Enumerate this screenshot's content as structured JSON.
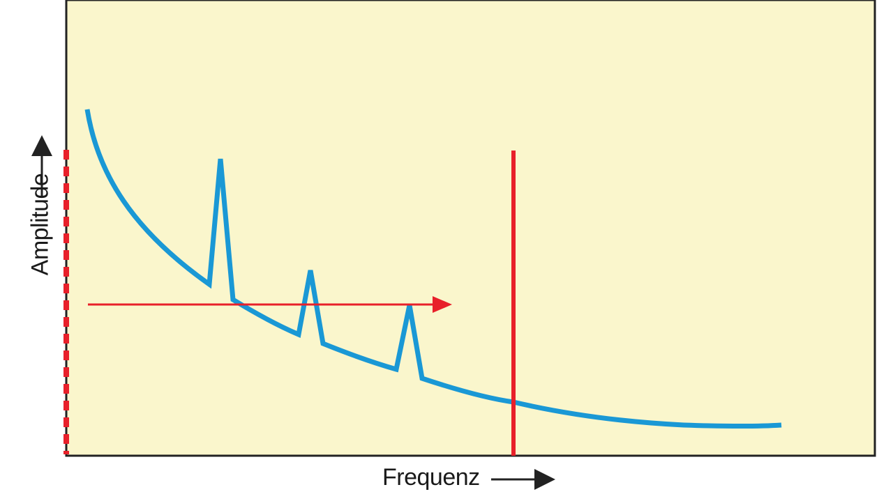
{
  "axes": {
    "x_label": "Frequenz",
    "y_label": "Amplitude"
  },
  "colors": {
    "background": "#faf6cc",
    "frame": "#222222",
    "curve": "#1a98d5",
    "marker": "#e8202a",
    "text": "#1a1a1a"
  }
}
